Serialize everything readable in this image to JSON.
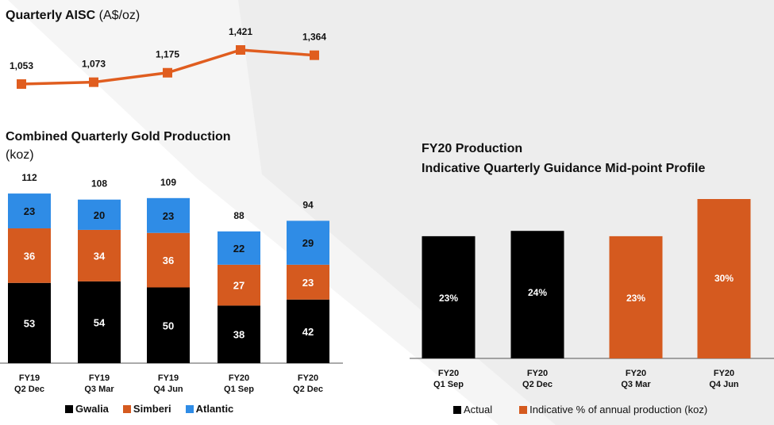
{
  "colors": {
    "gwalia": "#000000",
    "simberi": "#d55a1f",
    "atlantic": "#2f8ce6",
    "aisc_line": "#e05d1f",
    "actual": "#000000",
    "indicative": "#d55a1f",
    "background_wedge": "#ececec",
    "axis": "#555555"
  },
  "aisc": {
    "title_bold": "Quarterly AISC",
    "title_unit": "(A$/oz)"
  },
  "production": {
    "title_line1": "Combined Quarterly Gold Production",
    "title_line2": "(koz)",
    "legend": [
      "Gwalia",
      "Simberi",
      "Atlantic"
    ]
  },
  "guidance": {
    "title_line1": "FY20 Production",
    "title_line2": "Indicative Quarterly Guidance Mid-point Profile",
    "legend": [
      "Actual",
      "Indicative % of annual production (koz)"
    ]
  },
  "chart_data": [
    {
      "type": "line",
      "title": "Quarterly AISC (A$/oz)",
      "categories": [
        "FY19 Q2 Dec",
        "FY19 Q3 Mar",
        "FY19 Q4 Jun",
        "FY20 Q1 Sep",
        "FY20 Q2 Dec"
      ],
      "values": [
        1053,
        1073,
        1175,
        1421,
        1364
      ],
      "data_labels": [
        "1,053",
        "1,073",
        "1,175",
        "1,421",
        "1,364"
      ]
    },
    {
      "type": "bar",
      "stacked": true,
      "title": "Combined Quarterly Gold Production (koz)",
      "categories": [
        [
          "FY19",
          "Q2 Dec"
        ],
        [
          "FY19",
          "Q3 Mar"
        ],
        [
          "FY19",
          "Q4 Jun"
        ],
        [
          "FY20",
          "Q1 Sep"
        ],
        [
          "FY20",
          "Q2 Dec"
        ]
      ],
      "series": [
        {
          "name": "Gwalia",
          "values": [
            53,
            54,
            50,
            38,
            42
          ]
        },
        {
          "name": "Simberi",
          "values": [
            36,
            34,
            36,
            27,
            23
          ]
        },
        {
          "name": "Atlantic",
          "values": [
            23,
            20,
            23,
            22,
            29
          ]
        }
      ],
      "totals": [
        112,
        108,
        109,
        88,
        94
      ],
      "legend_position": "bottom"
    },
    {
      "type": "bar",
      "title": "FY20 Production Indicative Quarterly Guidance Mid-point Profile",
      "categories": [
        [
          "FY20",
          "Q1 Sep"
        ],
        [
          "FY20",
          "Q2 Dec"
        ],
        [
          "FY20",
          "Q3 Mar"
        ],
        [
          "FY20",
          "Q4 Jun"
        ]
      ],
      "values": [
        23,
        24,
        23,
        30
      ],
      "data_labels": [
        "23%",
        "24%",
        "23%",
        "30%"
      ],
      "series_kind": [
        "Actual",
        "Actual",
        "Indicative % of annual production (koz)",
        "Indicative % of annual production (koz)"
      ],
      "legend_position": "bottom"
    }
  ]
}
